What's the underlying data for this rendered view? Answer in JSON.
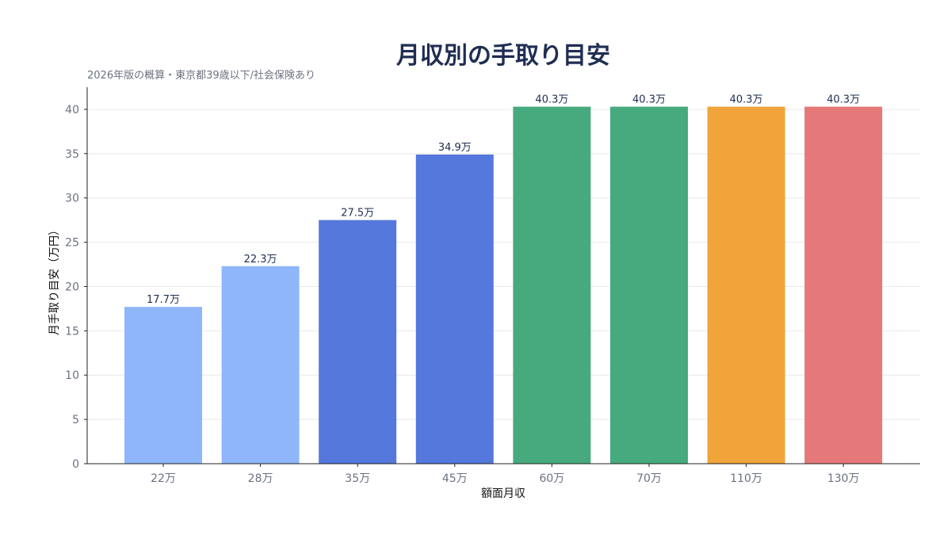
{
  "chart_data": {
    "type": "bar",
    "title": "月収別の手取り目安",
    "subtitle": "2026年版の概算・東京都39歳以下/社会保険あり",
    "xlabel": "額面月収",
    "ylabel": "月手取り目安（万円）",
    "categories": [
      "22万",
      "28万",
      "35万",
      "45万",
      "60万",
      "70万",
      "110万",
      "130万"
    ],
    "values": [
      17.7,
      22.3,
      27.5,
      34.9,
      40.3,
      40.3,
      40.3,
      40.3
    ],
    "data_labels": [
      "17.7万",
      "22.3万",
      "27.5万",
      "34.9万",
      "40.3万",
      "40.3万",
      "40.3万",
      "40.3万"
    ],
    "bar_colors": [
      "#8fb6fb",
      "#8fb6fb",
      "#5478dc",
      "#5478dc",
      "#47a97e",
      "#47a97e",
      "#f0a43a",
      "#e57878"
    ],
    "ylim": [
      0,
      42.5
    ],
    "yticks": [
      0,
      5,
      10,
      15,
      20,
      25,
      30,
      35,
      40
    ],
    "grid": true,
    "legend": "none"
  }
}
